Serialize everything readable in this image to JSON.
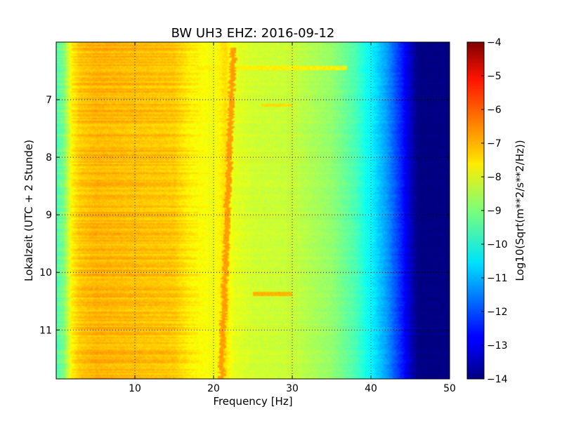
{
  "chart_data": {
    "type": "heatmap",
    "title": "BW UH3 EHZ: 2016-09-12",
    "xlabel": "Frequency [Hz]",
    "ylabel": "Lokalzeit (UTC + 2 Stunde)",
    "xlim": [
      0,
      50
    ],
    "ylim": [
      6.0,
      11.85
    ],
    "y_inverted": true,
    "x_ticks": [
      10,
      20,
      30,
      40,
      50
    ],
    "x_tick_labels": [
      "10",
      "20",
      "30",
      "40",
      "50"
    ],
    "y_ticks": [
      7,
      8,
      9,
      10,
      11
    ],
    "y_tick_labels": [
      "7",
      "8",
      "9",
      "10",
      "11"
    ],
    "grid": true,
    "colormap": "jet",
    "colorbar": {
      "label": "Log10(Sqrt(m**2/s**2/Hz))",
      "range": [
        -14,
        -4
      ],
      "ticks": [
        -4,
        -5,
        -6,
        -7,
        -8,
        -9,
        -10,
        -11,
        -12,
        -13,
        -14
      ],
      "tick_labels": [
        "−4",
        "−5",
        "−6",
        "−7",
        "−8",
        "−9",
        "−10",
        "−11",
        "−12",
        "−13",
        "−14"
      ]
    },
    "spectral_profile": {
      "frequency_hz": [
        0,
        1,
        2,
        3,
        5,
        10,
        15,
        17,
        20,
        21.5,
        22.5,
        25,
        30,
        35,
        38,
        40,
        42,
        44,
        45,
        46,
        50
      ],
      "value": [
        -9.5,
        -9.0,
        -7.6,
        -7.2,
        -7.0,
        -7.1,
        -7.2,
        -7.6,
        -7.9,
        -7.4,
        -8.0,
        -8.2,
        -8.3,
        -8.8,
        -9.5,
        -10.3,
        -11.2,
        -12.5,
        -13.3,
        -14,
        -14
      ]
    },
    "annotations": [
      {
        "type": "line",
        "frequency_hz": [
          21,
          22.5
        ],
        "time_h": [
          6.1,
          11.85
        ],
        "value": -6.8,
        "note": "narrow band drifting from ~22.5 Hz to ~21 Hz"
      },
      {
        "type": "burst",
        "frequency_hz": [
          25,
          30
        ],
        "time_h": 10.38,
        "value": -7.0
      },
      {
        "type": "burst",
        "frequency_hz": [
          26,
          30
        ],
        "time_h": 7.1,
        "value": -7.4
      },
      {
        "type": "burst",
        "frequency_hz": [
          17,
          37
        ],
        "time_h": 6.45,
        "value": -7.6
      }
    ]
  }
}
